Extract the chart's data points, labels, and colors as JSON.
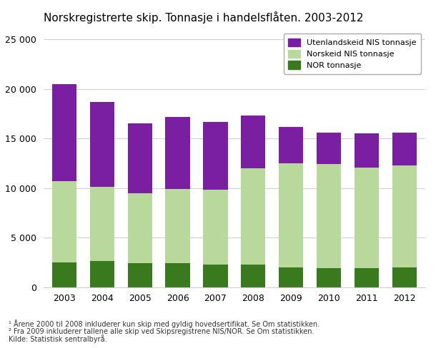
{
  "title": "Norskregistrerte skip. Tonnasje i handelsflåten. 2003-2012",
  "years": [
    "2003",
    "2004",
    "2005",
    "2006",
    "2007",
    "2008",
    "2009",
    "2010",
    "2011",
    "2012"
  ],
  "nor_tonnasje": [
    2500,
    2600,
    2400,
    2400,
    2300,
    2300,
    2000,
    1900,
    1900,
    2000
  ],
  "norskeid_nis": [
    8200,
    7500,
    7100,
    7500,
    7500,
    9700,
    10500,
    10500,
    10200,
    10300
  ],
  "utenlandskeid_nis": [
    9800,
    8600,
    7000,
    7300,
    6900,
    5300,
    3700,
    3200,
    3400,
    3300
  ],
  "color_nor": "#3a7a1e",
  "color_norskeid": "#b8d89c",
  "color_utenlandskeid": "#7b1fa2",
  "ylim": [
    0,
    26000
  ],
  "yticks": [
    0,
    5000,
    10000,
    15000,
    20000,
    25000
  ],
  "ytick_labels": [
    "0",
    "5 000",
    "10 000",
    "15 000",
    "20 000",
    "25 000"
  ],
  "legend_labels": [
    "Utenlandskeid NIS tonnasje",
    "Norskeid NIS tonnasje",
    "NOR tonnasje"
  ],
  "footnote1": "¹ Årene 2000 til 2008 inkluderer kun skip med gyldig hovedsertifikat. Se Om statistikken.",
  "footnote2": "² Fra 2009 inkluderer tallene alle skip ved Skipsregistrene NIS/NOR. Se Om statistikken.",
  "footnote3": "Kilde: Statistisk sentralbyrå.",
  "bg_color": "#ffffff",
  "grid_color": "#d0d0d0",
  "bar_width": 0.65,
  "title_fontsize": 11,
  "tick_fontsize": 9,
  "legend_fontsize": 8,
  "footnote_fontsize": 7
}
